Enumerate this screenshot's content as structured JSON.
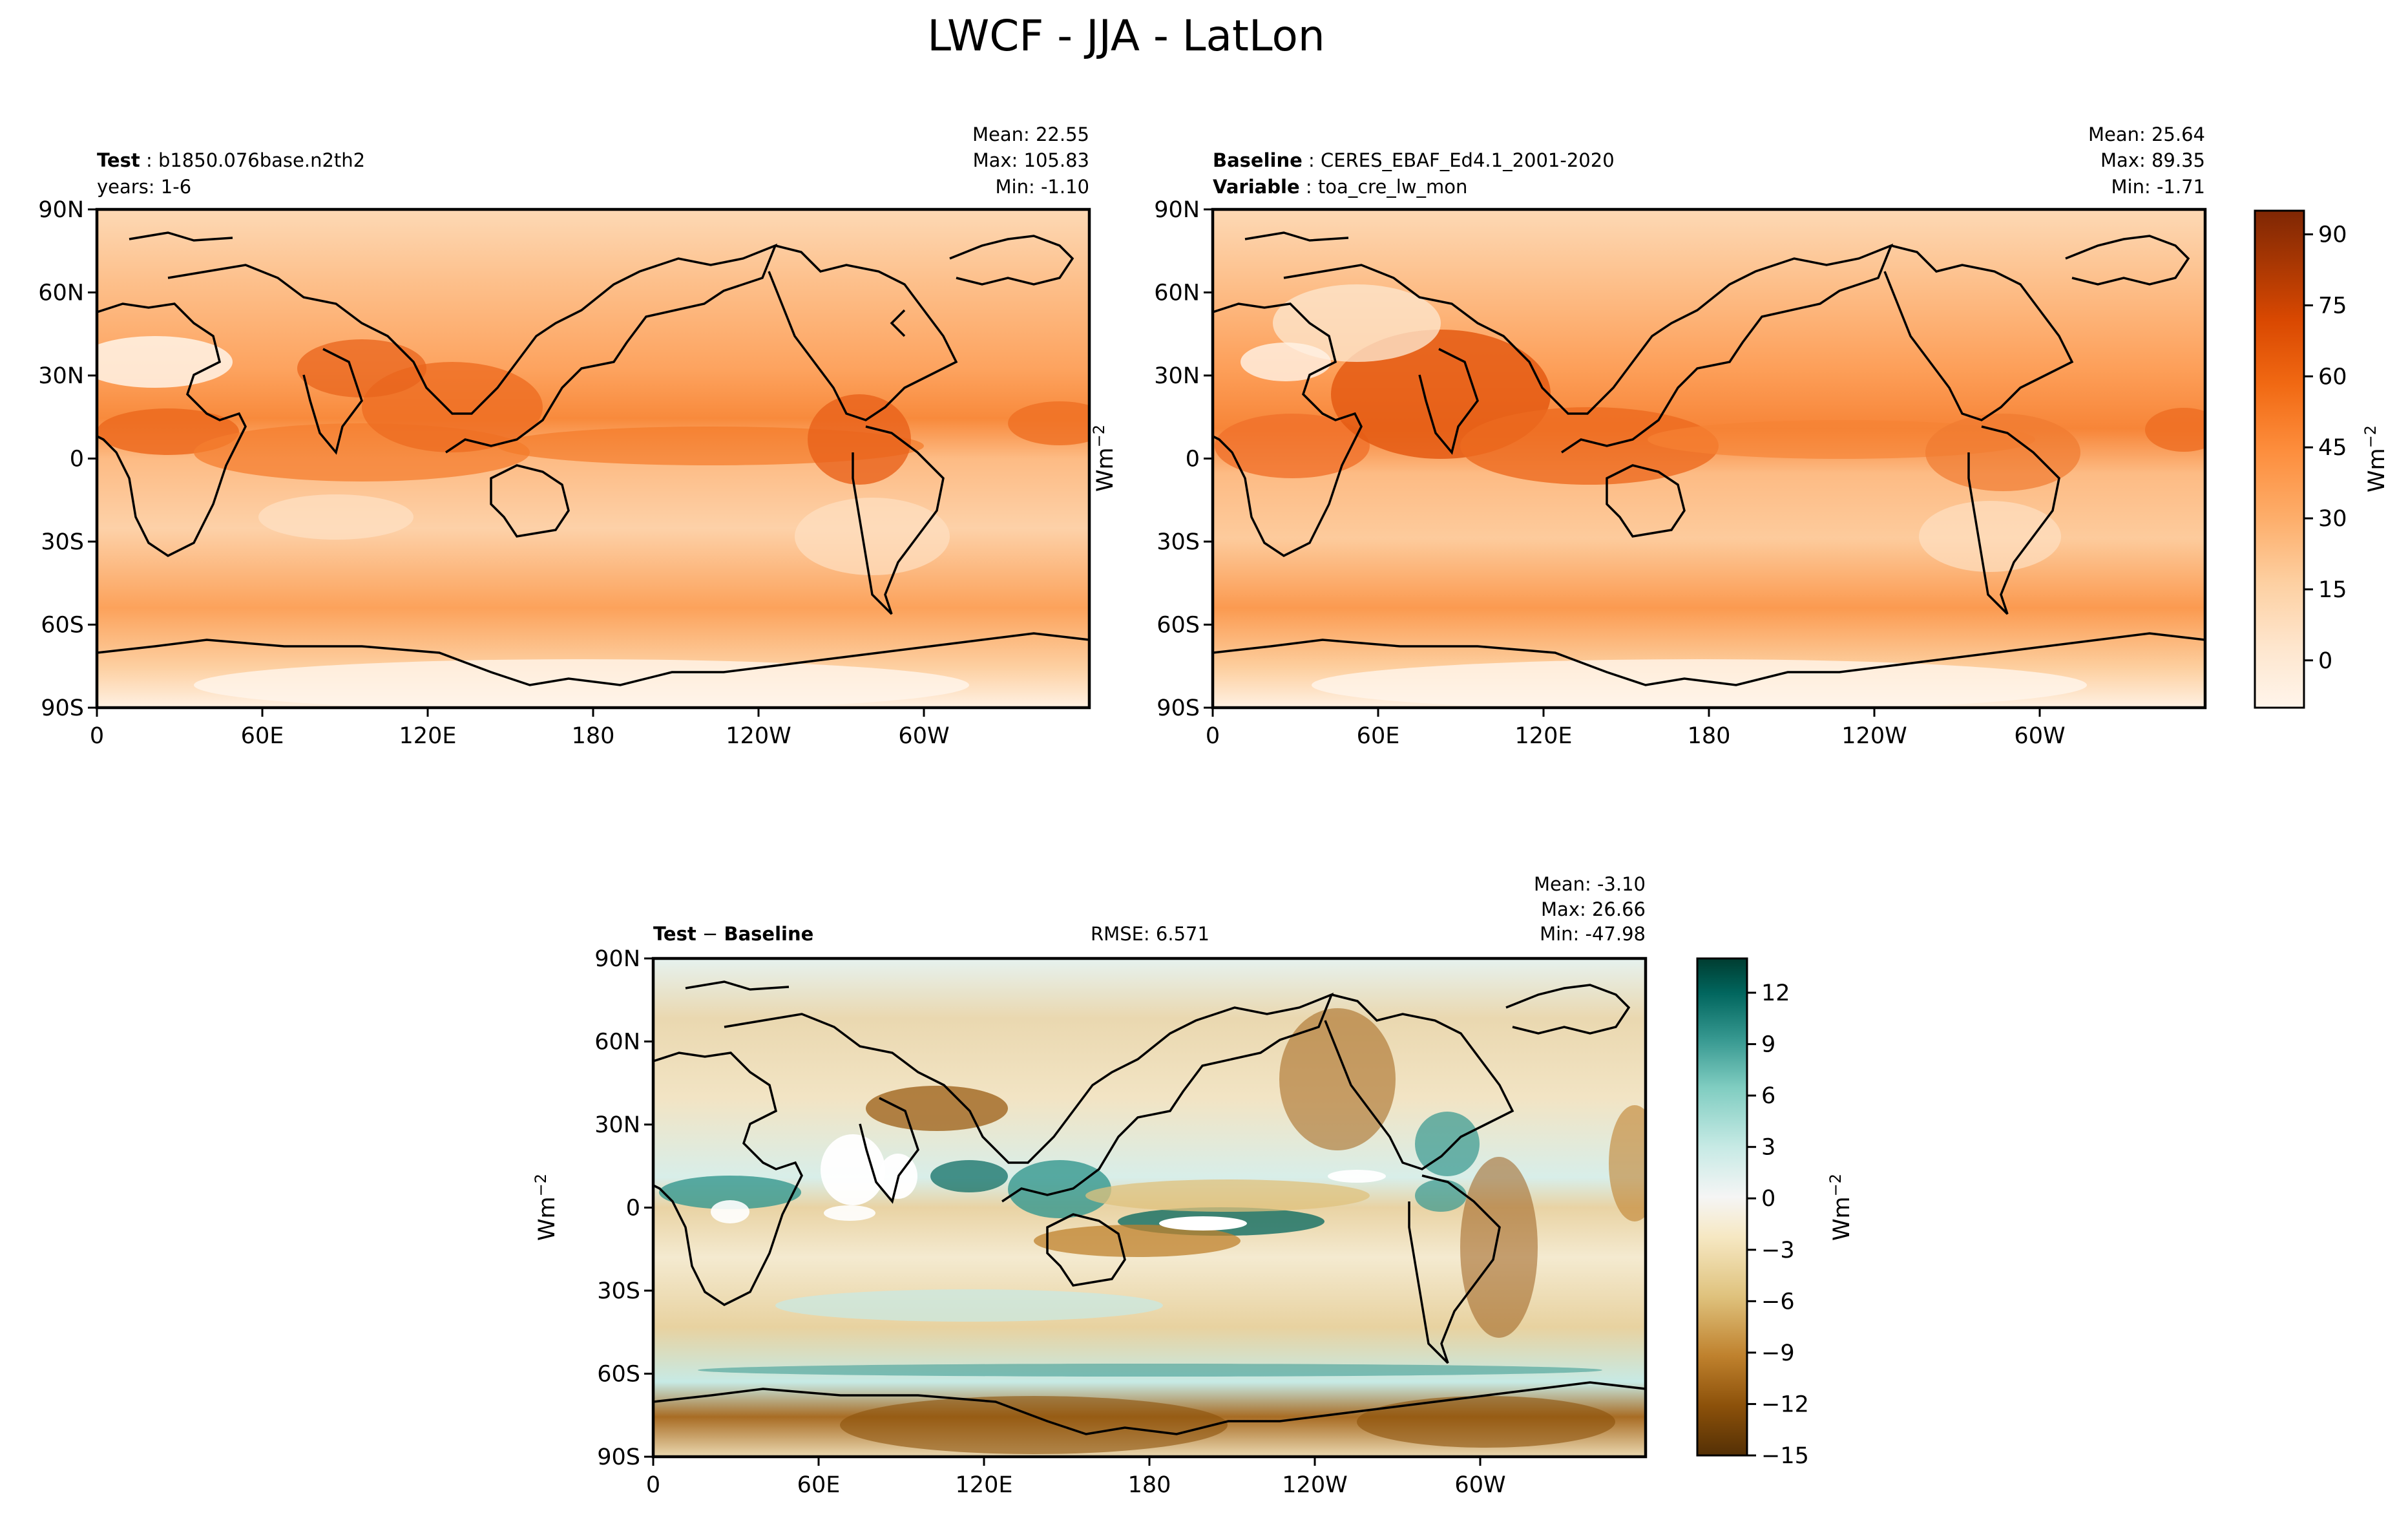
{
  "figure": {
    "title": "LWCF - JJA - LatLon"
  },
  "axes": {
    "lat_ticks": [
      "90N",
      "60N",
      "30N",
      "0",
      "30S",
      "60S",
      "90S"
    ],
    "lon_ticks": [
      "0",
      "60E",
      "120E",
      "180",
      "120W",
      "60W"
    ]
  },
  "panels": {
    "test": {
      "label_key": "Test",
      "label_value": "b1850.076base.n2th2",
      "sub_text": "years: 1-6",
      "stats": [
        "Mean: 22.55",
        "Max: 105.83",
        "Min: -1.10"
      ],
      "ylabel": "Wm",
      "ylabel_sup": "−2"
    },
    "baseline": {
      "label_key": "Baseline",
      "label_value": "CERES_EBAF_Ed4.1_2001-2020",
      "var_key": "Variable",
      "var_value": "toa_cre_lw_mon",
      "stats": [
        "Mean: 25.64",
        "Max: 89.35",
        "Min: -1.71"
      ]
    },
    "diff": {
      "label_key1": "Test",
      "label_minus": "−",
      "label_key2": "Baseline",
      "rmse": "RMSE: 6.571",
      "stats": [
        "Mean: -3.10",
        "Max: 26.66",
        "Min: -47.98"
      ],
      "ylabel": "Wm",
      "ylabel_sup": "−2"
    }
  },
  "colorbars": {
    "main": {
      "label": "Wm",
      "label_sup": "−2",
      "ticks": [
        "90",
        "75",
        "60",
        "45",
        "30",
        "15",
        "0"
      ],
      "colors": [
        "#fff5eb",
        "#fee6ce",
        "#fdd0a2",
        "#fdae6b",
        "#fd8d3c",
        "#f16913",
        "#d94801",
        "#a63603",
        "#7f2704"
      ]
    },
    "diff": {
      "label": "Wm",
      "label_sup": "−2",
      "ticks": [
        "12",
        "9",
        "6",
        "3",
        "0",
        "−3",
        "−6",
        "−9",
        "−12",
        "−15"
      ],
      "colors": [
        "#543005",
        "#8c510a",
        "#bf812d",
        "#dfc27d",
        "#f6e8c3",
        "#f5f5f5",
        "#c7eae5",
        "#80cdc1",
        "#35978f",
        "#01665e",
        "#003c30"
      ]
    }
  }
}
